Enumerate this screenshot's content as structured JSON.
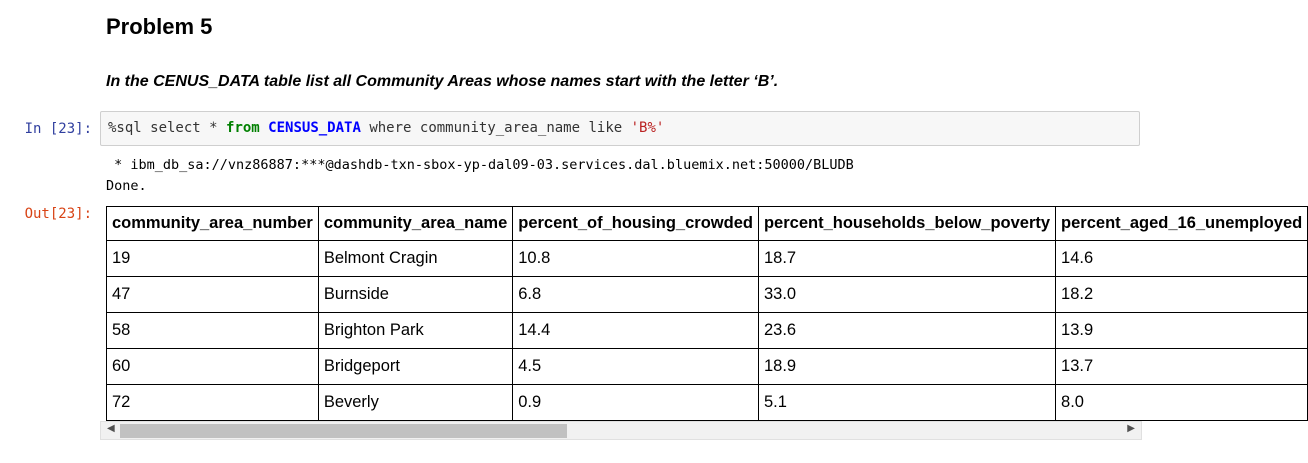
{
  "markdown": {
    "heading": "Problem 5",
    "instruction": "In the CENUS_DATA table list all Community Areas whose names start with the letter ‘B’."
  },
  "code_cell": {
    "in_prompt": "In [23]:",
    "magic": "%sql select * ",
    "kw_from": "from",
    "space1": " ",
    "table_name": "CENSUS_DATA",
    "middle": " where community_area_name like ",
    "pattern": "'B%'"
  },
  "output": {
    "stream_line1": " * ibm_db_sa://vnz86887:***@dashdb-txn-sbox-yp-dal09-03.services.dal.bluemix.net:50000/BLUDB",
    "stream_line2": "Done.",
    "out_prompt": "Out[23]:",
    "headers": [
      "community_area_number",
      "community_area_name",
      "percent_of_housing_crowded",
      "percent_households_below_poverty",
      "percent_aged_16_unemployed"
    ],
    "rows": [
      [
        "19",
        "Belmont Cragin",
        "10.8",
        "18.7",
        "14.6"
      ],
      [
        "47",
        "Burnside",
        "6.8",
        "33.0",
        "18.2"
      ],
      [
        "58",
        "Brighton Park",
        "14.4",
        "23.6",
        "13.9"
      ],
      [
        "60",
        "Bridgeport",
        "4.5",
        "18.9",
        "13.7"
      ],
      [
        "72",
        "Beverly",
        "0.9",
        "5.1",
        "8.0"
      ]
    ]
  },
  "scrollbar": {
    "left_arrow": "◀",
    "right_arrow": "▶",
    "thumb_fraction": 0.43
  }
}
